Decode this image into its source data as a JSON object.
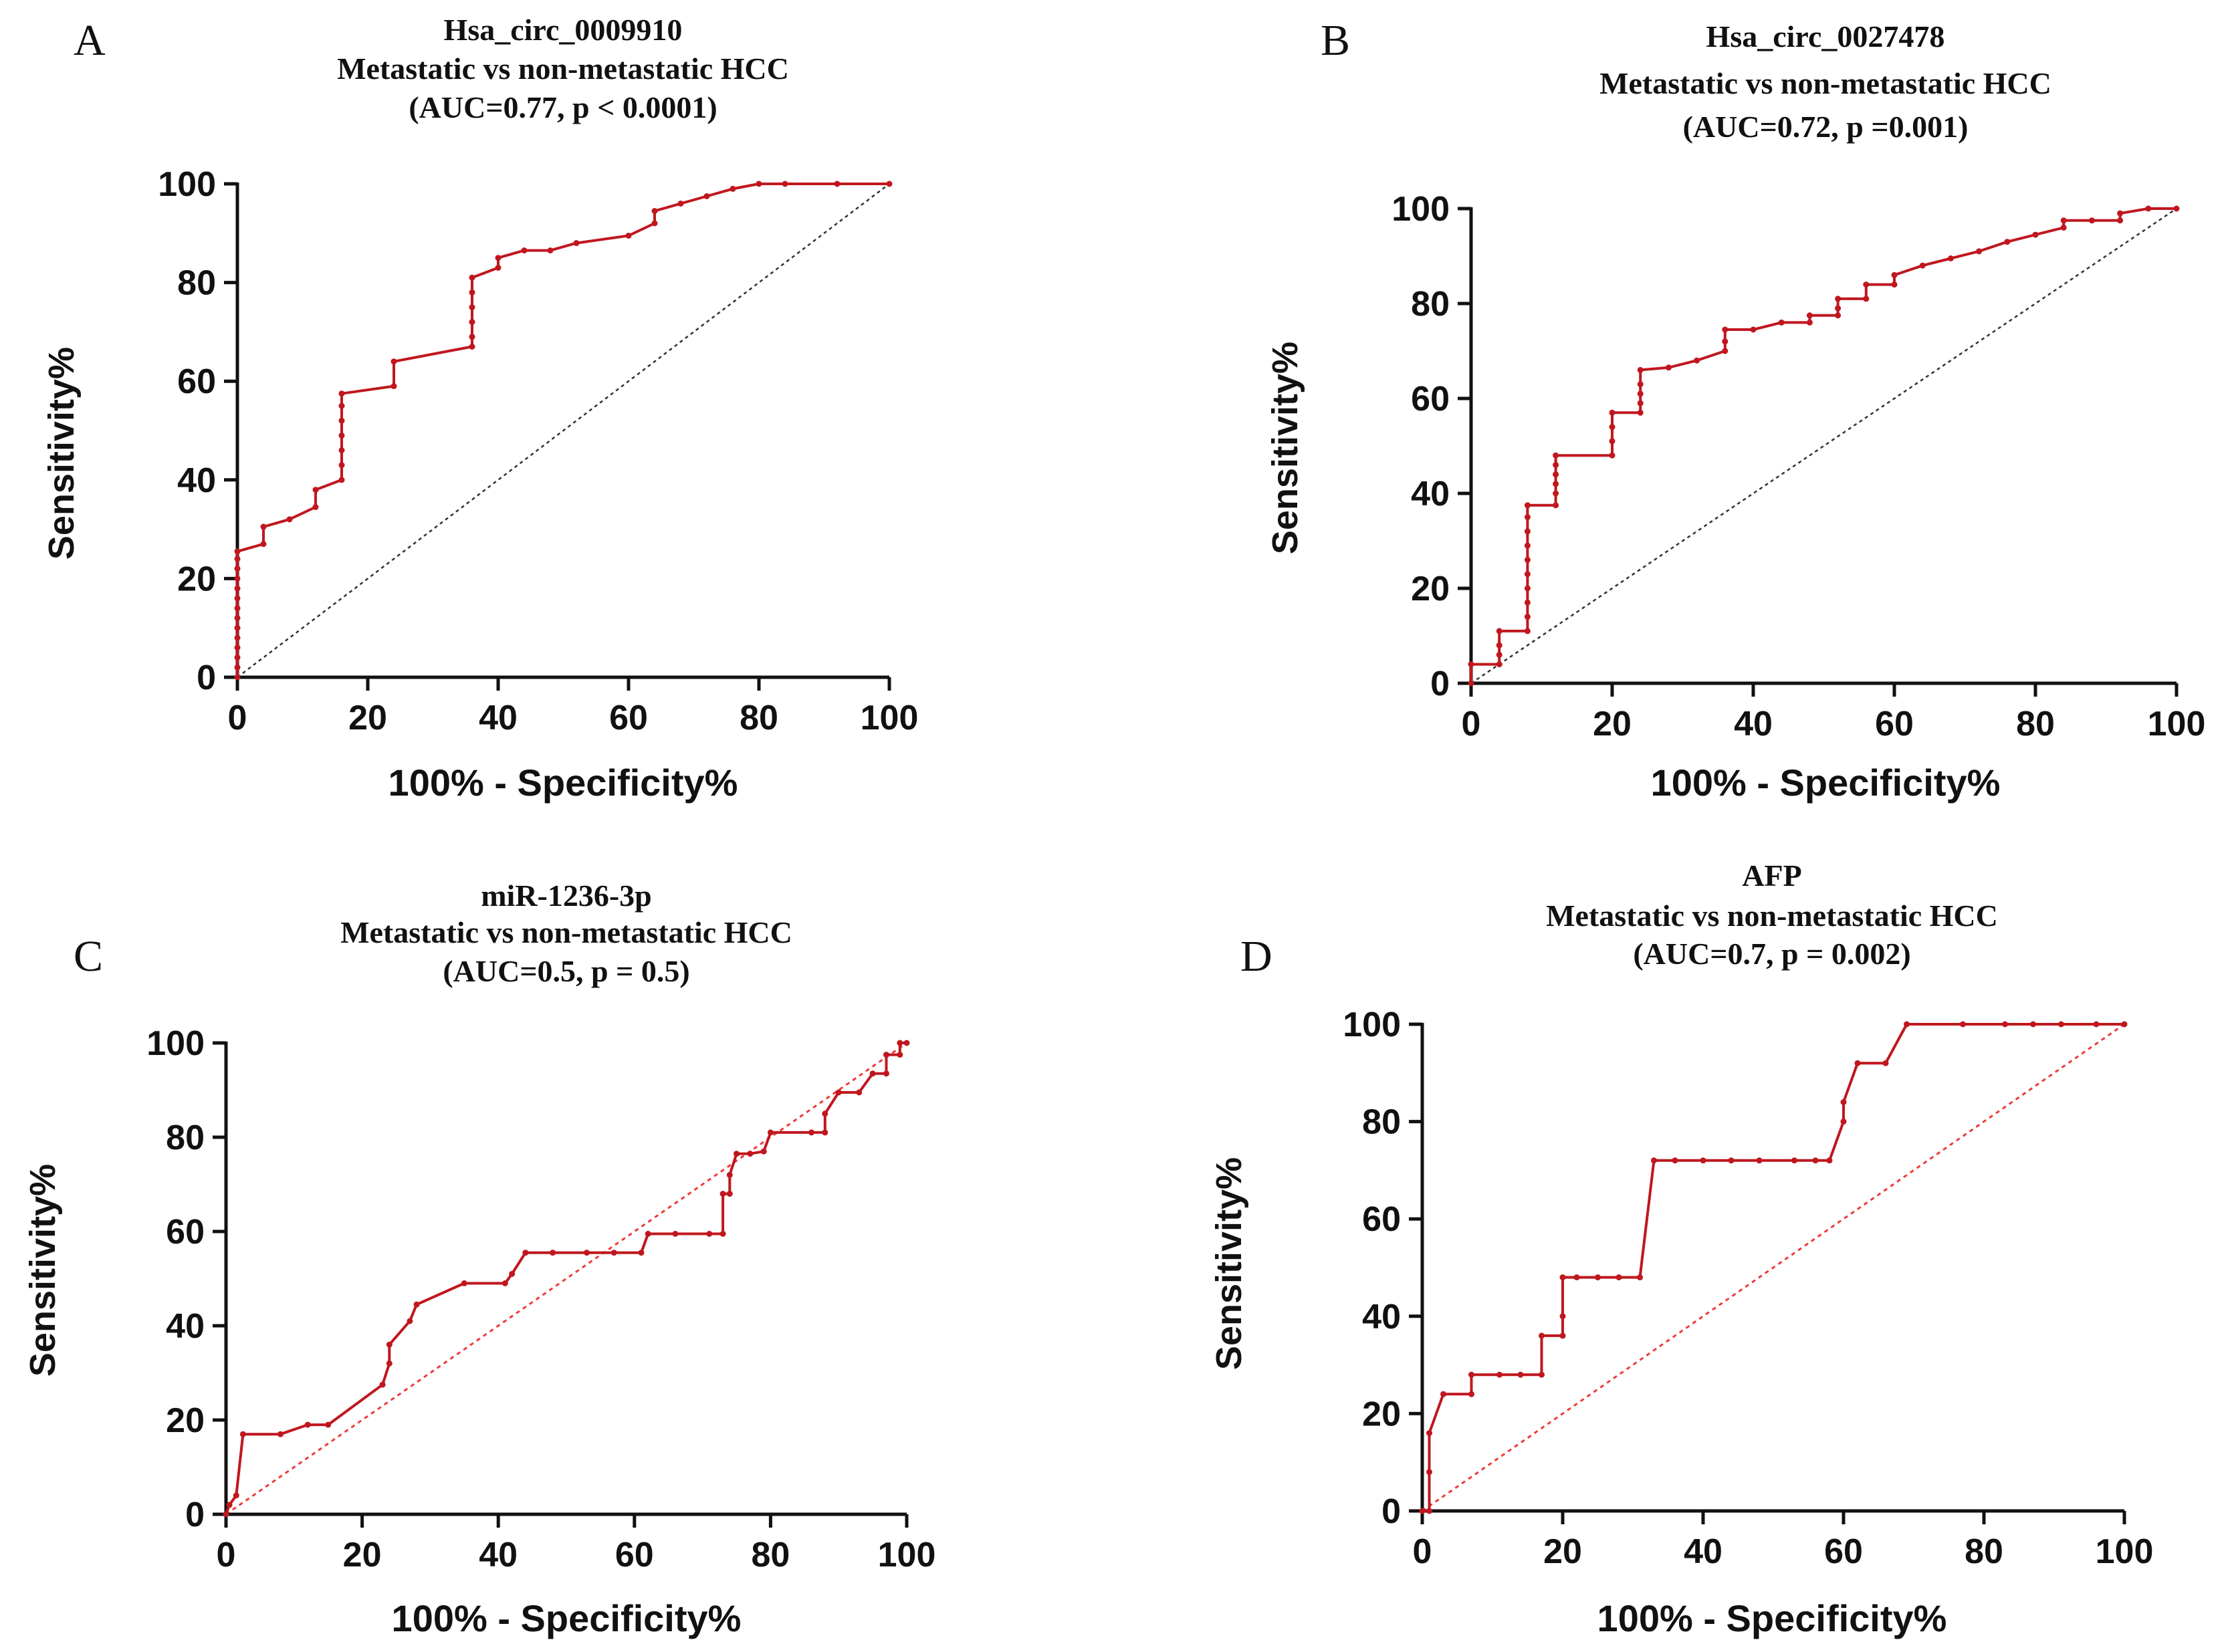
{
  "colors": {
    "curve": "#c0171f",
    "axis": "#111111",
    "text": "#111111"
  },
  "chart_data": [
    {
      "type": "line",
      "panel": "A",
      "title": [
        "Hsa_circ_0009910",
        "Metastatic vs non-metastatic HCC",
        "(AUC=0.77, p < 0.0001)"
      ],
      "xlabel": "100% - Specificity%",
      "ylabel": "Sensitivity%",
      "xlim": [
        0,
        100
      ],
      "ylim": [
        0,
        100
      ],
      "xticks": [
        "0",
        "20",
        "40",
        "60",
        "80",
        "100"
      ],
      "yticks": [
        "0",
        "20",
        "40",
        "60",
        "80",
        "100"
      ],
      "reference_line": "black-dotted",
      "series": [
        {
          "name": "ROC",
          "points": [
            [
              0,
              0
            ],
            [
              0,
              2
            ],
            [
              0,
              4
            ],
            [
              0,
              6
            ],
            [
              0,
              8
            ],
            [
              0,
              10
            ],
            [
              0,
              12
            ],
            [
              0,
              14
            ],
            [
              0,
              16
            ],
            [
              0,
              18
            ],
            [
              0,
              20
            ],
            [
              0,
              22
            ],
            [
              0,
              24
            ],
            [
              0,
              25.5
            ],
            [
              4,
              27
            ],
            [
              4,
              30.5
            ],
            [
              8,
              32
            ],
            [
              12,
              34.5
            ],
            [
              12,
              38
            ],
            [
              16,
              40
            ],
            [
              16,
              43
            ],
            [
              16,
              46
            ],
            [
              16,
              49
            ],
            [
              16,
              52
            ],
            [
              16,
              55
            ],
            [
              16,
              57.5
            ],
            [
              24,
              59
            ],
            [
              24,
              64
            ],
            [
              36,
              67
            ],
            [
              36,
              69
            ],
            [
              36,
              72
            ],
            [
              36,
              75
            ],
            [
              36,
              78
            ],
            [
              36,
              81
            ],
            [
              40,
              83
            ],
            [
              40,
              85
            ],
            [
              44,
              86.5
            ],
            [
              48,
              86.5
            ],
            [
              52,
              88
            ],
            [
              60,
              89.5
            ],
            [
              64,
              92
            ],
            [
              64,
              94.5
            ],
            [
              68,
              96
            ],
            [
              72,
              97.5
            ],
            [
              76,
              99
            ],
            [
              80,
              100
            ],
            [
              84,
              100
            ],
            [
              92,
              100
            ],
            [
              100,
              100
            ]
          ]
        }
      ]
    },
    {
      "type": "line",
      "panel": "B",
      "title": [
        "Hsa_circ_0027478",
        "Metastatic vs non-metastatic HCC",
        "(AUC=0.72, p =0.001)"
      ],
      "xlabel": "100% - Specificity%",
      "ylabel": "Sensitivity%",
      "xlim": [
        0,
        100
      ],
      "ylim": [
        0,
        100
      ],
      "xticks": [
        "0",
        "20",
        "40",
        "60",
        "80",
        "100"
      ],
      "yticks": [
        "0",
        "20",
        "40",
        "60",
        "80",
        "100"
      ],
      "reference_line": "black-dotted",
      "series": [
        {
          "name": "ROC",
          "points": [
            [
              0,
              0
            ],
            [
              0,
              4
            ],
            [
              4,
              4
            ],
            [
              4,
              6
            ],
            [
              4,
              8
            ],
            [
              4,
              11
            ],
            [
              8,
              11
            ],
            [
              8,
              14
            ],
            [
              8,
              17
            ],
            [
              8,
              20
            ],
            [
              8,
              23
            ],
            [
              8,
              26
            ],
            [
              8,
              29
            ],
            [
              8,
              32
            ],
            [
              8,
              35
            ],
            [
              8,
              37.5
            ],
            [
              12,
              37.5
            ],
            [
              12,
              40
            ],
            [
              12,
              42
            ],
            [
              12,
              44
            ],
            [
              12,
              46
            ],
            [
              12,
              48
            ],
            [
              20,
              48
            ],
            [
              20,
              51
            ],
            [
              20,
              54
            ],
            [
              20,
              57
            ],
            [
              24,
              57
            ],
            [
              24,
              59
            ],
            [
              24,
              61
            ],
            [
              24,
              63
            ],
            [
              24,
              66
            ],
            [
              28,
              66.5
            ],
            [
              32,
              68
            ],
            [
              36,
              70
            ],
            [
              36,
              72
            ],
            [
              36,
              74.5
            ],
            [
              40,
              74.5
            ],
            [
              44,
              76
            ],
            [
              48,
              76
            ],
            [
              48,
              77.5
            ],
            [
              52,
              77.5
            ],
            [
              52,
              79
            ],
            [
              52,
              81
            ],
            [
              56,
              81
            ],
            [
              56,
              84
            ],
            [
              60,
              84
            ],
            [
              60,
              86
            ],
            [
              64,
              88
            ],
            [
              68,
              89.5
            ],
            [
              72,
              91
            ],
            [
              76,
              93
            ],
            [
              80,
              94.5
            ],
            [
              84,
              96
            ],
            [
              84,
              97.5
            ],
            [
              88,
              97.5
            ],
            [
              92,
              97.5
            ],
            [
              92,
              99
            ],
            [
              96,
              100
            ],
            [
              100,
              100
            ]
          ]
        }
      ]
    },
    {
      "type": "line",
      "panel": "C",
      "title": [
        "miR-1236-3p",
        "Metastatic vs non-metastatic HCC",
        "(AUC=0.5, p = 0.5)"
      ],
      "xlabel": "100% - Specificity%",
      "ylabel": "Sensitivity%",
      "xlim": [
        0,
        100
      ],
      "ylim": [
        0,
        100
      ],
      "xticks": [
        "0",
        "20",
        "40",
        "60",
        "80",
        "100"
      ],
      "yticks": [
        "0",
        "20",
        "40",
        "60",
        "80",
        "100"
      ],
      "reference_line": "red-dotted",
      "series": [
        {
          "name": "ROC",
          "points": [
            [
              0,
              0
            ],
            [
              0.5,
              2
            ],
            [
              1.5,
              4
            ],
            [
              2.5,
              17
            ],
            [
              8,
              17
            ],
            [
              12,
              19
            ],
            [
              15,
              19
            ],
            [
              23,
              27.5
            ],
            [
              24,
              32
            ],
            [
              24,
              36
            ],
            [
              27,
              41
            ],
            [
              28,
              44.5
            ],
            [
              35,
              49
            ],
            [
              41,
              49
            ],
            [
              42,
              51
            ],
            [
              44,
              55.5
            ],
            [
              48,
              55.5
            ],
            [
              53,
              55.5
            ],
            [
              57,
              55.5
            ],
            [
              61,
              55.5
            ],
            [
              62,
              59.5
            ],
            [
              66,
              59.5
            ],
            [
              71,
              59.5
            ],
            [
              73,
              59.5
            ],
            [
              73,
              68
            ],
            [
              74,
              68
            ],
            [
              74,
              72
            ],
            [
              75,
              76.5
            ],
            [
              77,
              76.5
            ],
            [
              79,
              77
            ],
            [
              80,
              81
            ],
            [
              86,
              81
            ],
            [
              88,
              81
            ],
            [
              88,
              85
            ],
            [
              90,
              89.5
            ],
            [
              93,
              89.5
            ],
            [
              95,
              93.5
            ],
            [
              97,
              93.5
            ],
            [
              97,
              97.5
            ],
            [
              99,
              97.5
            ],
            [
              99,
              100
            ],
            [
              100,
              100
            ]
          ]
        }
      ]
    },
    {
      "type": "line",
      "panel": "D",
      "title": [
        "AFP",
        "Metastatic vs non-metastatic HCC",
        "(AUC=0.7, p = 0.002)"
      ],
      "xlabel": "100% - Specificity%",
      "ylabel": "Sensitivity%",
      "xlim": [
        0,
        100
      ],
      "ylim": [
        0,
        100
      ],
      "xticks": [
        "0",
        "20",
        "40",
        "60",
        "80",
        "100"
      ],
      "yticks": [
        "0",
        "20",
        "40",
        "60",
        "80",
        "100"
      ],
      "reference_line": "red-dotted",
      "series": [
        {
          "name": "ROC",
          "points": [
            [
              0,
              0
            ],
            [
              1,
              0
            ],
            [
              1,
              8
            ],
            [
              1,
              16
            ],
            [
              3,
              24
            ],
            [
              7,
              24
            ],
            [
              7,
              28
            ],
            [
              11,
              28
            ],
            [
              14,
              28
            ],
            [
              17,
              28
            ],
            [
              17,
              36
            ],
            [
              20,
              36
            ],
            [
              20,
              40
            ],
            [
              20,
              48
            ],
            [
              22,
              48
            ],
            [
              25,
              48
            ],
            [
              28,
              48
            ],
            [
              31,
              48
            ],
            [
              33,
              72
            ],
            [
              36,
              72
            ],
            [
              40,
              72
            ],
            [
              44,
              72
            ],
            [
              48,
              72
            ],
            [
              53,
              72
            ],
            [
              56,
              72
            ],
            [
              58,
              72
            ],
            [
              60,
              80
            ],
            [
              60,
              84
            ],
            [
              62,
              92
            ],
            [
              66,
              92
            ],
            [
              69,
              100
            ],
            [
              77,
              100
            ],
            [
              83,
              100
            ],
            [
              87,
              100
            ],
            [
              91,
              100
            ],
            [
              96,
              100
            ],
            [
              100,
              100
            ]
          ]
        }
      ]
    }
  ]
}
